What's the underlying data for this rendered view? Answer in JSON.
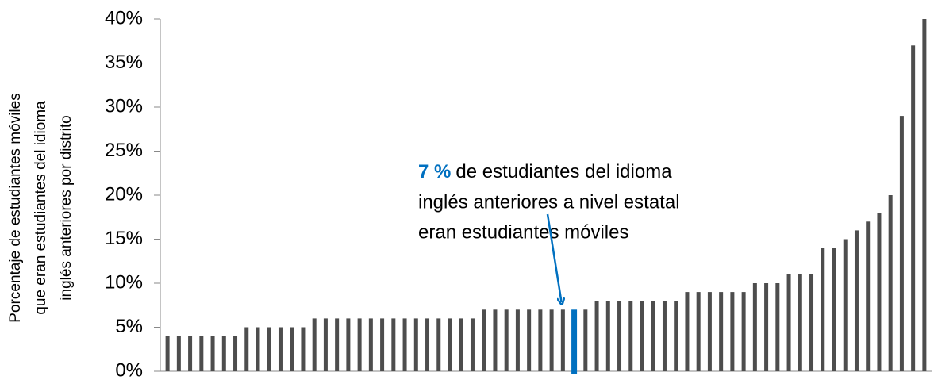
{
  "chart_data": {
    "type": "bar",
    "y_label": [
      "Porcentaje de estudiantes móviles",
      "que eran estudiantes del idioma",
      "inglés anteriores por distrito"
    ],
    "annotation": {
      "highlight": "7 %",
      "lines": [
        "de estudiantes del idioma",
        "inglés anteriores a nivel estatal",
        "eran estudiantes móviles"
      ]
    },
    "values": [
      4,
      4,
      4,
      4,
      4,
      4,
      4,
      5,
      5,
      5,
      5,
      5,
      5,
      6,
      6,
      6,
      6,
      6,
      6,
      6,
      6,
      6,
      6,
      6,
      6,
      6,
      6,
      6,
      7,
      7,
      7,
      7,
      7,
      7,
      7,
      7,
      7,
      7,
      8,
      8,
      8,
      8,
      8,
      8,
      8,
      8,
      9,
      9,
      9,
      9,
      9,
      9,
      10,
      10,
      10,
      11,
      11,
      11,
      14,
      14,
      15,
      16,
      17,
      18,
      20,
      29,
      37,
      40
    ],
    "color": "#4d4d4d",
    "highlight_color": "#0070c0",
    "highlight_bars": [
      36
    ],
    "ylim": [
      0,
      40
    ],
    "yticks": [
      {
        "value": 0,
        "label": "0%"
      },
      {
        "value": 5,
        "label": "5%"
      },
      {
        "value": 10,
        "label": "10%"
      },
      {
        "value": 15,
        "label": "15%"
      },
      {
        "value": 20,
        "label": "20%"
      },
      {
        "value": 25,
        "label": "25%"
      },
      {
        "value": 30,
        "label": "30%"
      },
      {
        "value": 35,
        "label": "35%"
      },
      {
        "value": 40,
        "label": "40%"
      }
    ]
  }
}
